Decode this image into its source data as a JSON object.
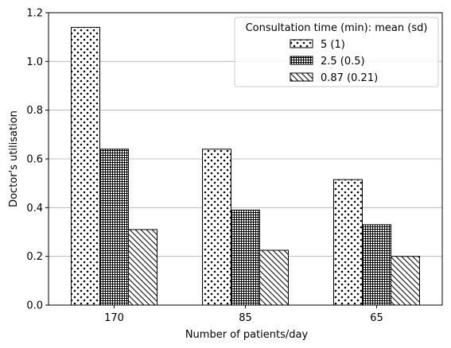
{
  "chart_data": {
    "type": "bar",
    "categories": [
      "170",
      "85",
      "65"
    ],
    "series": [
      {
        "name": "5 (1)",
        "pattern": "dots",
        "values": [
          1.14,
          0.64,
          0.515
        ]
      },
      {
        "name": "2.5 (0.5)",
        "pattern": "grid",
        "values": [
          0.64,
          0.39,
          0.33
        ]
      },
      {
        "name": "0.87 (0.21)",
        "pattern": "hatch",
        "values": [
          0.31,
          0.225,
          0.2
        ]
      }
    ],
    "title": "",
    "xlabel": "Number of patients/day",
    "ylabel": "Doctor's utilisation",
    "ylim": [
      0,
      1.2
    ],
    "yticks": [
      "0.0",
      "0.2",
      "0.4",
      "0.6",
      "0.8",
      "1.0",
      "1.2"
    ],
    "legend_title": "Consultation time (min): mean (sd)",
    "legend_position": "top-right",
    "grid": "horizontal"
  }
}
